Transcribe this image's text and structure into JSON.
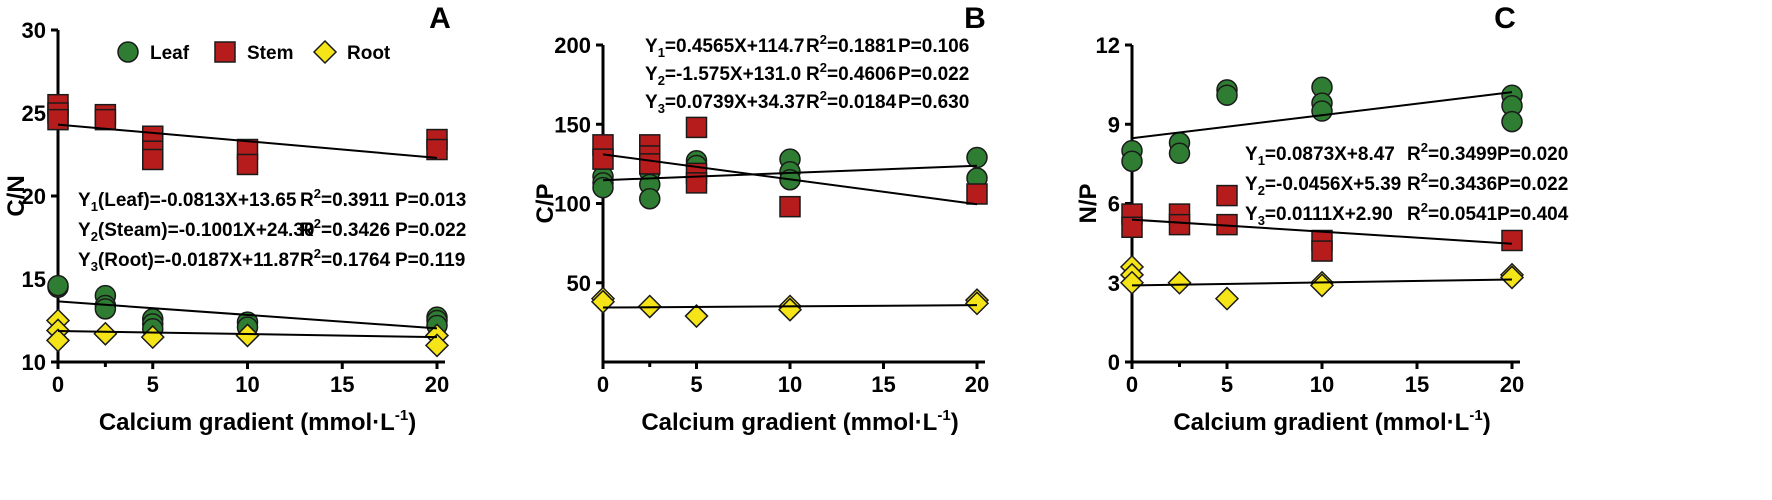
{
  "legend": {
    "position": "top",
    "items": [
      {
        "name": "Leaf",
        "color": "#2e7d32",
        "marker": "circle"
      },
      {
        "name": "Stem",
        "color": "#b71c1c",
        "marker": "square"
      },
      {
        "name": "Root",
        "color": "#f4e418",
        "marker": "diamond"
      }
    ]
  },
  "chart_data": [
    {
      "type": "scatter",
      "panel": "A",
      "xlabel": "Calcium gradient (mmol·L",
      "xlabel_sup": "-1",
      "xlabel_end": ")",
      "ylabel": "C/N",
      "xlim": [
        0,
        20
      ],
      "ylim": [
        10,
        30
      ],
      "x_ticks": [
        "0",
        "5",
        "10",
        "15",
        "20"
      ],
      "y_ticks": [
        "10",
        "15",
        "20",
        "25",
        "30"
      ],
      "show_legend": true,
      "series": [
        {
          "name": "Leaf",
          "x": [
            0,
            0,
            2.5,
            2.5,
            2.5,
            5,
            5,
            5,
            10,
            10,
            20,
            20,
            20
          ],
          "y": [
            14.5,
            14.6,
            14.0,
            13.4,
            13.2,
            12.6,
            12.3,
            12.0,
            12.4,
            12.1,
            12.7,
            12.5,
            12.2
          ],
          "fit": {
            "slope": -0.0813,
            "intercept": 13.65
          }
        },
        {
          "name": "Stem",
          "x": [
            0,
            0,
            0,
            2.5,
            2.5,
            5,
            5,
            5,
            10,
            10,
            20,
            20
          ],
          "y": [
            25.5,
            25.0,
            24.6,
            24.9,
            24.6,
            23.6,
            22.7,
            22.2,
            22.8,
            21.9,
            23.4,
            22.8
          ],
          "fit": {
            "slope": -0.1001,
            "intercept": 24.3
          }
        },
        {
          "name": "Root",
          "x": [
            0,
            0,
            0,
            2.5,
            5,
            10,
            20,
            20
          ],
          "y": [
            12.5,
            11.9,
            11.3,
            11.7,
            11.5,
            11.6,
            11.6,
            11.0
          ],
          "fit": {
            "slope": -0.0187,
            "intercept": 11.87
          }
        }
      ],
      "equations": [
        {
          "y": "Y",
          "sub": "1",
          "label": "(Leaf)=-0.0813X+13.65",
          "r2": "=0.3911",
          "p": "P=0.013"
        },
        {
          "y": "Y",
          "sub": "2",
          "label": "(Steam)=-0.1001X+24.30",
          "r2": "=0.3426",
          "p": "P=0.022"
        },
        {
          "y": "Y",
          "sub": "3",
          "label": "(Root)=-0.0187X+11.87",
          "r2": "=0.1764",
          "p": "P=0.119"
        }
      ]
    },
    {
      "type": "scatter",
      "panel": "B",
      "xlabel": "Calcium gradient (mmol·L",
      "xlabel_sup": "-1",
      "xlabel_end": ")",
      "ylabel": "C/P",
      "xlim": [
        0,
        20
      ],
      "ylim": [
        0,
        200
      ],
      "x_ticks": [
        "0",
        "5",
        "10",
        "15",
        "20"
      ],
      "y_ticks": [
        "50",
        "100",
        "150",
        "200"
      ],
      "show_legend": false,
      "series": [
        {
          "name": "Leaf",
          "x": [
            0,
            0,
            0,
            2.5,
            2.5,
            2.5,
            5,
            5,
            10,
            10,
            10,
            20,
            20
          ],
          "y": [
            117,
            113,
            110,
            120,
            112,
            103,
            127,
            124,
            128,
            120,
            115,
            129,
            116
          ],
          "fit": {
            "slope": 0.4565,
            "intercept": 114.7
          }
        },
        {
          "name": "Stem",
          "x": [
            0,
            0,
            2.5,
            2.5,
            2.5,
            5,
            5,
            5,
            10,
            20
          ],
          "y": [
            137,
            128,
            137,
            130,
            125,
            148,
            119,
            113,
            98,
            106
          ],
          "fit": {
            "slope": -1.575,
            "intercept": 131.0
          }
        },
        {
          "name": "Root",
          "x": [
            0,
            0,
            2.5,
            5,
            10,
            10,
            20,
            20
          ],
          "y": [
            40,
            38,
            35,
            29,
            35,
            33,
            39,
            37
          ],
          "fit": {
            "slope": 0.0739,
            "intercept": 34.37
          }
        }
      ],
      "equations": [
        {
          "y": "Y",
          "sub": "1",
          "label": "=0.4565X+114.7",
          "r2": "=0.1881",
          "p": "P=0.106"
        },
        {
          "y": "Y",
          "sub": "2",
          "label": "=-1.575X+131.0",
          "r2": "=0.4606",
          "p": "P=0.022"
        },
        {
          "y": "Y",
          "sub": "3",
          "label": "=0.0739X+34.37",
          "r2": "=0.0184",
          "p": "P=0.630"
        }
      ]
    },
    {
      "type": "scatter",
      "panel": "C",
      "xlabel": "Calcium gradient (mmol·L",
      "xlabel_sup": "-1",
      "xlabel_end": ")",
      "ylabel": "N/P",
      "xlim": [
        0,
        20
      ],
      "ylim": [
        0,
        12
      ],
      "x_ticks": [
        "0",
        "5",
        "10",
        "15",
        "20"
      ],
      "y_ticks": [
        "0",
        "3",
        "6",
        "9",
        "12"
      ],
      "show_legend": false,
      "series": [
        {
          "name": "Leaf",
          "x": [
            0,
            0,
            2.5,
            2.5,
            5,
            5,
            10,
            10,
            10,
            20,
            20,
            20
          ],
          "y": [
            8.0,
            7.6,
            8.3,
            7.9,
            10.3,
            10.1,
            10.4,
            9.8,
            9.5,
            10.1,
            9.7,
            9.1
          ],
          "fit": {
            "slope": 0.0873,
            "intercept": 8.47
          }
        },
        {
          "name": "Stem",
          "x": [
            0,
            0,
            2.5,
            2.5,
            5,
            5,
            10,
            10,
            20
          ],
          "y": [
            5.6,
            5.1,
            5.6,
            5.2,
            6.3,
            5.2,
            4.6,
            4.2,
            4.6
          ],
          "fit": {
            "slope": -0.0456,
            "intercept": 5.39
          }
        },
        {
          "name": "Root",
          "x": [
            0,
            0,
            0,
            2.5,
            5,
            10,
            10,
            20,
            20
          ],
          "y": [
            3.6,
            3.3,
            3.0,
            3.0,
            2.4,
            3.0,
            2.9,
            3.3,
            3.2
          ],
          "fit": {
            "slope": 0.0111,
            "intercept": 2.9
          }
        }
      ],
      "equations": [
        {
          "y": "Y",
          "sub": "1",
          "label": "=0.0873X+8.47",
          "r2": "=0.3499",
          "p": "P=0.020"
        },
        {
          "y": "Y",
          "sub": "2",
          "label": "=-0.0456X+5.39",
          "r2": "=0.3436",
          "p": "P=0.022"
        },
        {
          "y": "Y",
          "sub": "3",
          "label": "=0.0111X+2.90",
          "r2": "=0.0541",
          "p": "P=0.404"
        }
      ]
    }
  ]
}
